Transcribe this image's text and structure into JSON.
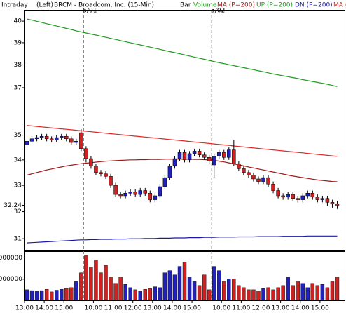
{
  "chart_data": {
    "type": "candlestick",
    "header": {
      "view": "Intraday",
      "scale": "(Left)",
      "symbol": "BRCM - Broadcom, Inc. (15-Min)",
      "style": "Bar"
    },
    "categories": [
      "13:00",
      null,
      null,
      null,
      "14:00",
      null,
      null,
      null,
      "15:00",
      null,
      null,
      null,
      null,
      null,
      "10:00",
      null,
      null,
      null,
      "11:00",
      null,
      null,
      null,
      "12:00",
      null,
      null,
      null,
      "13:00",
      null,
      null,
      null,
      "14:00",
      null,
      null,
      null,
      "15:00",
      null,
      null,
      null,
      null,
      null,
      "10:00",
      null,
      null,
      null,
      "11:00",
      null,
      null,
      null,
      "12:00",
      null,
      null,
      null,
      "13:00",
      null,
      null,
      null,
      "14:00",
      null,
      null,
      null,
      "15:00",
      null,
      null,
      null
    ],
    "session_dates": [
      null,
      null,
      null,
      null,
      null,
      null,
      null,
      null,
      null,
      null,
      null,
      null,
      "5/01",
      null,
      null,
      null,
      null,
      null,
      null,
      null,
      null,
      null,
      null,
      null,
      null,
      null,
      null,
      null,
      null,
      null,
      null,
      null,
      null,
      null,
      null,
      null,
      null,
      null,
      "5/02",
      null,
      null,
      null,
      null,
      null,
      null,
      null,
      null,
      null,
      null,
      null,
      null,
      null,
      null,
      null,
      null,
      null,
      null,
      null,
      null,
      null,
      null,
      null,
      null,
      null
    ],
    "open": [
      34.6,
      34.75,
      34.85,
      34.9,
      34.95,
      34.85,
      34.8,
      34.9,
      34.95,
      34.85,
      34.7,
      35.1,
      34.45,
      34.05,
      33.75,
      33.5,
      33.45,
      33.35,
      33.0,
      32.65,
      32.6,
      32.7,
      32.75,
      32.65,
      32.8,
      32.7,
      32.45,
      32.6,
      32.95,
      33.3,
      33.75,
      34.05,
      34.3,
      34.0,
      34.25,
      34.35,
      34.2,
      34.1,
      33.8,
      34.15,
      34.3,
      34.1,
      34.4,
      33.85,
      33.65,
      33.5,
      33.4,
      33.25,
      33.15,
      33.3,
      33.05,
      32.8,
      32.6,
      32.55,
      32.65,
      32.5,
      32.45,
      32.6,
      32.7,
      32.55,
      32.45,
      32.5,
      32.35,
      32.3
    ],
    "high": [
      34.85,
      34.95,
      35.0,
      35.05,
      35.05,
      34.95,
      35.0,
      35.05,
      35.05,
      34.95,
      34.85,
      35.25,
      34.55,
      34.15,
      33.85,
      33.6,
      33.55,
      33.45,
      33.1,
      32.75,
      32.8,
      32.85,
      32.85,
      32.9,
      32.9,
      32.8,
      32.7,
      33.05,
      33.4,
      33.85,
      34.15,
      34.4,
      34.4,
      34.35,
      34.45,
      34.45,
      34.3,
      34.2,
      34.25,
      34.4,
      34.4,
      34.5,
      34.8,
      33.95,
      33.75,
      33.6,
      33.5,
      33.35,
      33.4,
      33.4,
      33.15,
      32.9,
      32.7,
      32.75,
      32.75,
      32.6,
      32.7,
      32.8,
      32.8,
      32.65,
      32.6,
      32.6,
      32.45,
      32.4
    ],
    "low": [
      34.5,
      34.65,
      34.75,
      34.8,
      34.75,
      34.7,
      34.7,
      34.8,
      34.75,
      34.6,
      34.6,
      34.35,
      33.9,
      33.65,
      33.4,
      33.35,
      33.25,
      32.9,
      32.55,
      32.5,
      32.5,
      32.6,
      32.55,
      32.55,
      32.6,
      32.35,
      32.35,
      32.5,
      32.85,
      33.2,
      33.65,
      33.95,
      33.9,
      33.9,
      34.15,
      34.1,
      34.0,
      33.85,
      33.3,
      34.05,
      34.0,
      34.0,
      33.75,
      33.55,
      33.4,
      33.3,
      33.15,
      33.05,
      33.05,
      32.95,
      32.7,
      32.5,
      32.45,
      32.45,
      32.4,
      32.35,
      32.35,
      32.5,
      32.45,
      32.35,
      32.35,
      32.2,
      32.15,
      32.1
    ],
    "close": [
      34.75,
      34.85,
      34.9,
      34.95,
      34.85,
      34.8,
      34.9,
      34.95,
      34.85,
      34.7,
      34.75,
      34.45,
      34.05,
      33.75,
      33.5,
      33.45,
      33.35,
      33.0,
      32.65,
      32.6,
      32.7,
      32.75,
      32.65,
      32.8,
      32.7,
      32.45,
      32.6,
      32.95,
      33.3,
      33.75,
      34.05,
      34.3,
      34.0,
      34.25,
      34.35,
      34.2,
      34.1,
      33.95,
      34.15,
      34.3,
      34.1,
      34.4,
      33.85,
      33.65,
      33.5,
      33.4,
      33.25,
      33.15,
      33.3,
      33.05,
      32.8,
      32.6,
      32.55,
      32.65,
      32.5,
      32.45,
      32.6,
      32.7,
      32.55,
      32.45,
      32.5,
      32.35,
      32.3,
      32.24
    ],
    "up_color": "#2222bb",
    "down_color": "#cc2222",
    "series": [
      {
        "name": "MA (P=200)",
        "color": "#a01818",
        "values": [
          33.4,
          33.45,
          33.5,
          33.55,
          33.6,
          33.64,
          33.68,
          33.72,
          33.76,
          33.79,
          33.82,
          33.85,
          33.87,
          33.89,
          33.91,
          33.93,
          33.95,
          33.96,
          33.97,
          33.98,
          33.99,
          34.0,
          34.0,
          34.01,
          34.01,
          34.02,
          34.02,
          34.02,
          34.03,
          34.03,
          34.03,
          34.03,
          34.03,
          34.03,
          34.02,
          34.02,
          34.01,
          34.0,
          33.98,
          33.95,
          33.92,
          33.88,
          33.84,
          33.8,
          33.76,
          33.72,
          33.68,
          33.64,
          33.6,
          33.56,
          33.52,
          33.48,
          33.44,
          33.4,
          33.36,
          33.33,
          33.3,
          33.27,
          33.24,
          33.21,
          33.19,
          33.17,
          33.15,
          33.14
        ]
      },
      {
        "name": "UP (P=200)",
        "color": "#1f9a1f",
        "values": [
          40.1,
          40.05,
          39.99,
          39.94,
          39.88,
          39.83,
          39.77,
          39.72,
          39.66,
          39.61,
          39.55,
          39.5,
          39.45,
          39.4,
          39.35,
          39.3,
          39.25,
          39.2,
          39.15,
          39.1,
          39.05,
          39.0,
          38.95,
          38.9,
          38.85,
          38.8,
          38.75,
          38.7,
          38.65,
          38.6,
          38.55,
          38.5,
          38.45,
          38.4,
          38.35,
          38.3,
          38.25,
          38.2,
          38.15,
          38.1,
          38.06,
          38.01,
          37.97,
          37.92,
          37.88,
          37.83,
          37.79,
          37.74,
          37.7,
          37.65,
          37.6,
          37.56,
          37.52,
          37.48,
          37.44,
          37.4,
          37.35,
          37.31,
          37.27,
          37.23,
          37.19,
          37.15,
          37.1,
          37.05
        ]
      },
      {
        "name": "DN (P=200)",
        "color": "#1a1aa8",
        "values": [
          30.85,
          30.86,
          30.87,
          30.88,
          30.89,
          30.9,
          30.91,
          30.92,
          30.93,
          30.94,
          30.95,
          30.96,
          30.96,
          30.97,
          30.97,
          30.98,
          30.98,
          30.98,
          30.99,
          30.99,
          30.99,
          31.0,
          31.0,
          31.0,
          31.01,
          31.01,
          31.01,
          31.02,
          31.02,
          31.02,
          31.03,
          31.03,
          31.03,
          31.04,
          31.04,
          31.04,
          31.05,
          31.05,
          31.05,
          31.06,
          31.06,
          31.06,
          31.06,
          31.07,
          31.07,
          31.07,
          31.07,
          31.08,
          31.08,
          31.08,
          31.08,
          31.08,
          31.09,
          31.09,
          31.09,
          31.09,
          31.09,
          31.1,
          31.1,
          31.1,
          31.1,
          31.1,
          31.1,
          31.1
        ]
      },
      {
        "name": "MA (P=200)",
        "color": "#e02525",
        "values": [
          35.4,
          35.38,
          35.36,
          35.34,
          35.32,
          35.3,
          35.28,
          35.26,
          35.24,
          35.22,
          35.2,
          35.18,
          35.16,
          35.14,
          35.12,
          35.1,
          35.08,
          35.06,
          35.04,
          35.02,
          35.0,
          34.98,
          34.96,
          34.94,
          34.92,
          34.9,
          34.88,
          34.86,
          34.84,
          34.82,
          34.8,
          34.78,
          34.76,
          34.74,
          34.72,
          34.7,
          34.68,
          34.66,
          34.64,
          34.62,
          34.6,
          34.58,
          34.56,
          34.54,
          34.52,
          34.5,
          34.48,
          34.46,
          34.44,
          34.42,
          34.4,
          34.38,
          34.36,
          34.34,
          34.32,
          34.3,
          34.28,
          34.26,
          34.24,
          34.22,
          34.2,
          34.18,
          34.16,
          34.14
        ]
      }
    ],
    "ylim": [
      30.6,
      40.5
    ],
    "yticks": [
      31,
      32,
      32.24,
      33,
      34,
      35,
      37,
      38,
      39,
      40
    ],
    "log_scale": true,
    "volume": {
      "name": "Volume",
      "color": "#1f9a1f",
      "values": [
        2500000,
        2300000,
        2200000,
        2300000,
        2600000,
        2000000,
        2400000,
        2600000,
        2800000,
        3000000,
        4500000,
        6500000,
        10500000,
        7800000,
        9500000,
        6500000,
        8200000,
        5500000,
        4000000,
        5500000,
        3800000,
        3000000,
        2500000,
        2200000,
        2600000,
        2800000,
        3200000,
        3000000,
        6500000,
        7000000,
        6000000,
        8000000,
        9000000,
        5500000,
        4500000,
        3500000,
        6000000,
        2500000,
        8000000,
        7000000,
        4500000,
        5000000,
        5000000,
        3500000,
        3000000,
        2500000,
        2500000,
        2200000,
        2800000,
        3000000,
        2500000,
        3000000,
        3500000,
        5500000,
        3500000,
        4500000,
        4000000,
        3000000,
        4000000,
        3500000,
        3800000,
        3000000,
        4500000,
        5500000
      ],
      "ylim": [
        0,
        11400000
      ],
      "yticks": [
        5000000,
        10000000
      ]
    }
  }
}
